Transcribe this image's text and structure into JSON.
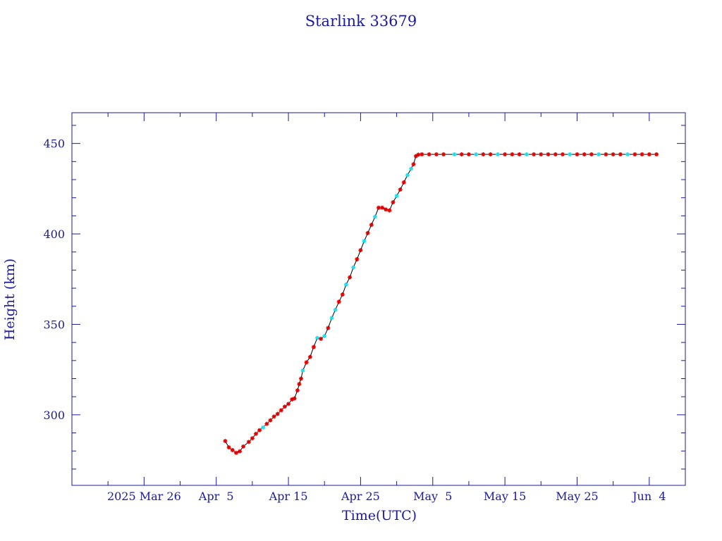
{
  "chart_data": {
    "type": "line",
    "title": "Starlink 33679",
    "xlabel": "Time(UTC)",
    "ylabel": "Height (km)",
    "xlim": [
      "2025-03-16",
      "2025-06-09"
    ],
    "ylim": [
      261,
      467
    ],
    "x_tick_labels": [
      "2025 Mar 26",
      "Apr  5",
      "Apr 15",
      "Apr 25",
      "May  5",
      "May 15",
      "May 25",
      "Jun  4"
    ],
    "x_tick_dates": [
      "2025-03-26",
      "2025-04-05",
      "2025-04-15",
      "2025-04-25",
      "2025-05-05",
      "2025-05-15",
      "2025-05-25",
      "2025-06-04"
    ],
    "y_ticks": [
      300,
      350,
      400,
      450
    ],
    "grid": false,
    "colors": {
      "frame": "#1a1a9c",
      "line": "#000000",
      "marker_primary": "#e00000",
      "marker_secondary": "#22dde8"
    },
    "series": [
      {
        "values": [
          {
            "x": "2025-04-06 06:00",
            "y": 285.5,
            "c": "primary"
          },
          {
            "x": "2025-04-06 18:00",
            "y": 282.0,
            "c": "primary"
          },
          {
            "x": "2025-04-07 06:00",
            "y": 280.5,
            "c": "primary"
          },
          {
            "x": "2025-04-07 18:00",
            "y": 279.0,
            "c": "primary"
          },
          {
            "x": "2025-04-08 06:00",
            "y": 279.8,
            "c": "primary"
          },
          {
            "x": "2025-04-08 18:00",
            "y": 282.5,
            "c": "primary"
          },
          {
            "x": "2025-04-09 12:00",
            "y": 285.0,
            "c": "primary"
          },
          {
            "x": "2025-04-10 00:00",
            "y": 287.0,
            "c": "primary"
          },
          {
            "x": "2025-04-10 12:00",
            "y": 289.5,
            "c": "primary"
          },
          {
            "x": "2025-04-11 00:00",
            "y": 291.5,
            "c": "primary"
          },
          {
            "x": "2025-04-11 12:00",
            "y": 293.0,
            "c": "secondary"
          },
          {
            "x": "2025-04-12 00:00",
            "y": 295.0,
            "c": "primary"
          },
          {
            "x": "2025-04-12 12:00",
            "y": 297.0,
            "c": "primary"
          },
          {
            "x": "2025-04-13 00:00",
            "y": 299.0,
            "c": "primary"
          },
          {
            "x": "2025-04-13 12:00",
            "y": 300.5,
            "c": "primary"
          },
          {
            "x": "2025-04-14 00:00",
            "y": 302.5,
            "c": "primary"
          },
          {
            "x": "2025-04-14 12:00",
            "y": 304.5,
            "c": "primary"
          },
          {
            "x": "2025-04-15 00:00",
            "y": 306.0,
            "c": "primary"
          },
          {
            "x": "2025-04-15 12:00",
            "y": 308.5,
            "c": "primary"
          },
          {
            "x": "2025-04-15 20:00",
            "y": 309.0,
            "c": "primary"
          },
          {
            "x": "2025-04-16 06:00",
            "y": 313.5,
            "c": "primary"
          },
          {
            "x": "2025-04-16 12:00",
            "y": 317.0,
            "c": "primary"
          },
          {
            "x": "2025-04-16 18:00",
            "y": 320.0,
            "c": "primary"
          },
          {
            "x": "2025-04-17 00:00",
            "y": 324.5,
            "c": "secondary"
          },
          {
            "x": "2025-04-17 12:00",
            "y": 329.0,
            "c": "primary"
          },
          {
            "x": "2025-04-18 00:00",
            "y": 332.0,
            "c": "primary"
          },
          {
            "x": "2025-04-18 12:00",
            "y": 337.5,
            "c": "primary"
          },
          {
            "x": "2025-04-19 00:00",
            "y": 342.5,
            "c": "secondary"
          },
          {
            "x": "2025-04-19 12:00",
            "y": 342.0,
            "c": "primary"
          },
          {
            "x": "2025-04-20 00:00",
            "y": 343.5,
            "c": "secondary"
          },
          {
            "x": "2025-04-20 12:00",
            "y": 348.0,
            "c": "primary"
          },
          {
            "x": "2025-04-21 00:00",
            "y": 353.5,
            "c": "secondary"
          },
          {
            "x": "2025-04-21 12:00",
            "y": 358.0,
            "c": "secondary"
          },
          {
            "x": "2025-04-22 00:00",
            "y": 362.5,
            "c": "primary"
          },
          {
            "x": "2025-04-22 12:00",
            "y": 366.5,
            "c": "primary"
          },
          {
            "x": "2025-04-23 00:00",
            "y": 372.0,
            "c": "secondary"
          },
          {
            "x": "2025-04-23 12:00",
            "y": 376.0,
            "c": "primary"
          },
          {
            "x": "2025-04-24 00:00",
            "y": 381.5,
            "c": "secondary"
          },
          {
            "x": "2025-04-24 12:00",
            "y": 386.0,
            "c": "primary"
          },
          {
            "x": "2025-04-25 00:00",
            "y": 391.0,
            "c": "primary"
          },
          {
            "x": "2025-04-25 12:00",
            "y": 396.0,
            "c": "secondary"
          },
          {
            "x": "2025-04-26 00:00",
            "y": 400.5,
            "c": "primary"
          },
          {
            "x": "2025-04-26 12:00",
            "y": 405.0,
            "c": "primary"
          },
          {
            "x": "2025-04-27 00:00",
            "y": 409.5,
            "c": "secondary"
          },
          {
            "x": "2025-04-27 12:00",
            "y": 414.5,
            "c": "primary"
          },
          {
            "x": "2025-04-28 00:00",
            "y": 414.5,
            "c": "primary"
          },
          {
            "x": "2025-04-28 12:00",
            "y": 413.5,
            "c": "primary"
          },
          {
            "x": "2025-04-29 00:00",
            "y": 413.0,
            "c": "primary"
          },
          {
            "x": "2025-04-29 12:00",
            "y": 417.5,
            "c": "primary"
          },
          {
            "x": "2025-04-30 00:00",
            "y": 421.0,
            "c": "secondary"
          },
          {
            "x": "2025-04-30 12:00",
            "y": 424.5,
            "c": "primary"
          },
          {
            "x": "2025-05-01 00:00",
            "y": 428.5,
            "c": "primary"
          },
          {
            "x": "2025-05-01 12:00",
            "y": 432.5,
            "c": "secondary"
          },
          {
            "x": "2025-05-02 00:00",
            "y": 436.0,
            "c": "secondary"
          },
          {
            "x": "2025-05-02 08:00",
            "y": 438.5,
            "c": "primary"
          },
          {
            "x": "2025-05-02 16:00",
            "y": 443.0,
            "c": "primary"
          },
          {
            "x": "2025-05-03 00:00",
            "y": 443.8,
            "c": "primary"
          },
          {
            "x": "2025-05-03 12:00",
            "y": 444.0,
            "c": "primary"
          },
          {
            "x": "2025-05-04 12:00",
            "y": 444.0,
            "c": "primary"
          },
          {
            "x": "2025-05-05 12:00",
            "y": 444.0,
            "c": "primary"
          },
          {
            "x": "2025-05-06 12:00",
            "y": 444.0,
            "c": "primary"
          },
          {
            "x": "2025-05-08 00:00",
            "y": 444.0,
            "c": "secondary"
          },
          {
            "x": "2025-05-09 00:00",
            "y": 444.0,
            "c": "primary"
          },
          {
            "x": "2025-05-10 00:00",
            "y": 444.0,
            "c": "primary"
          },
          {
            "x": "2025-05-11 00:00",
            "y": 444.0,
            "c": "secondary"
          },
          {
            "x": "2025-05-12 00:00",
            "y": 444.0,
            "c": "primary"
          },
          {
            "x": "2025-05-13 00:00",
            "y": 444.0,
            "c": "primary"
          },
          {
            "x": "2025-05-14 00:00",
            "y": 444.0,
            "c": "secondary"
          },
          {
            "x": "2025-05-15 00:00",
            "y": 444.0,
            "c": "primary"
          },
          {
            "x": "2025-05-16 00:00",
            "y": 444.0,
            "c": "primary"
          },
          {
            "x": "2025-05-17 00:00",
            "y": 444.0,
            "c": "primary"
          },
          {
            "x": "2025-05-18 00:00",
            "y": 444.0,
            "c": "secondary"
          },
          {
            "x": "2025-05-19 00:00",
            "y": 444.0,
            "c": "primary"
          },
          {
            "x": "2025-05-20 00:00",
            "y": 444.0,
            "c": "primary"
          },
          {
            "x": "2025-05-21 00:00",
            "y": 444.0,
            "c": "primary"
          },
          {
            "x": "2025-05-22 00:00",
            "y": 444.0,
            "c": "primary"
          },
          {
            "x": "2025-05-23 00:00",
            "y": 444.0,
            "c": "primary"
          },
          {
            "x": "2025-05-24 00:00",
            "y": 444.0,
            "c": "secondary"
          },
          {
            "x": "2025-05-25 00:00",
            "y": 444.0,
            "c": "primary"
          },
          {
            "x": "2025-05-26 00:00",
            "y": 444.0,
            "c": "primary"
          },
          {
            "x": "2025-05-27 00:00",
            "y": 444.0,
            "c": "primary"
          },
          {
            "x": "2025-05-28 00:00",
            "y": 444.0,
            "c": "secondary"
          },
          {
            "x": "2025-05-29 00:00",
            "y": 444.0,
            "c": "primary"
          },
          {
            "x": "2025-05-30 00:00",
            "y": 444.0,
            "c": "primary"
          },
          {
            "x": "2025-05-31 00:00",
            "y": 444.0,
            "c": "primary"
          },
          {
            "x": "2025-06-01 00:00",
            "y": 444.0,
            "c": "secondary"
          },
          {
            "x": "2025-06-02 00:00",
            "y": 444.0,
            "c": "primary"
          },
          {
            "x": "2025-06-03 00:00",
            "y": 444.0,
            "c": "primary"
          },
          {
            "x": "2025-06-04 00:00",
            "y": 444.0,
            "c": "primary"
          },
          {
            "x": "2025-06-05 00:00",
            "y": 444.0,
            "c": "primary"
          }
        ]
      }
    ]
  }
}
